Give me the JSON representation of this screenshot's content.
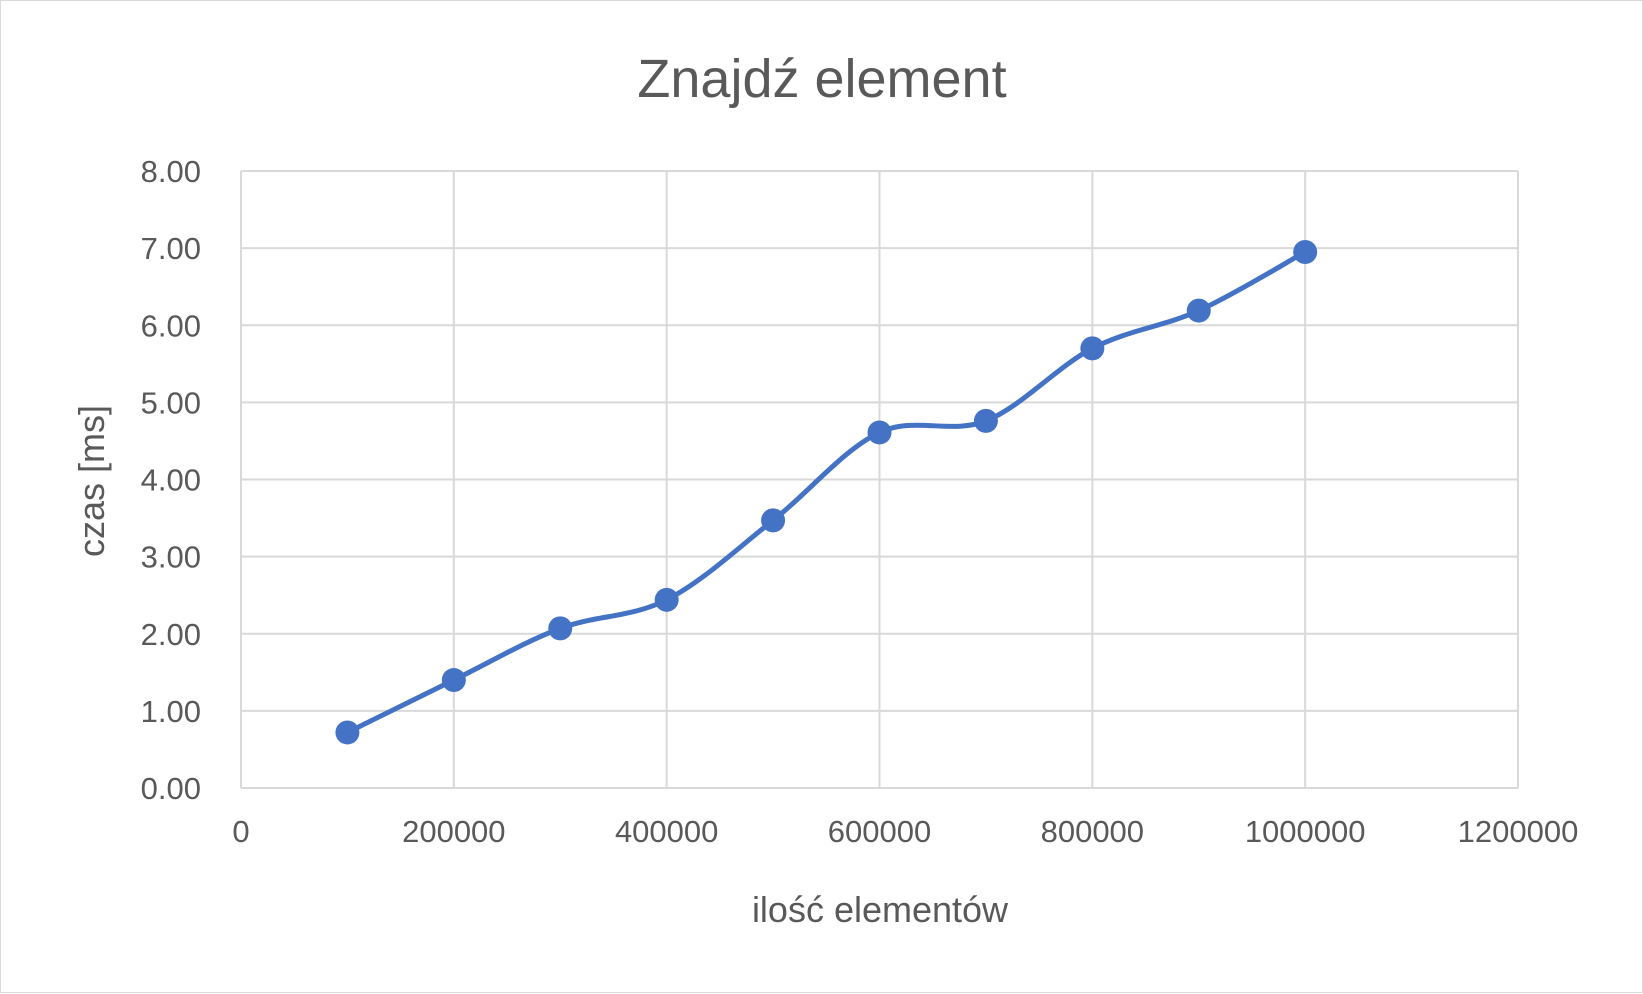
{
  "chart_data": {
    "type": "line",
    "title": "Znajdź element",
    "xlabel": "ilość elementów",
    "ylabel": "czas [ms]",
    "xlim": [
      0,
      1200000
    ],
    "ylim": [
      0,
      8
    ],
    "xticks": [
      0,
      200000,
      400000,
      600000,
      800000,
      1000000,
      1200000
    ],
    "yticks": [
      0,
      1,
      2,
      3,
      4,
      5,
      6,
      7,
      8
    ],
    "ytick_decimals": 2,
    "grid": true,
    "smooth": true,
    "legend": "none",
    "series": [
      {
        "color": "#4472c4",
        "x": [
          100000,
          200000,
          300000,
          400000,
          500000,
          600000,
          700000,
          800000,
          900000,
          1000000
        ],
        "y": [
          0.72,
          1.4,
          2.07,
          2.44,
          3.47,
          4.61,
          4.76,
          5.7,
          6.19,
          6.95
        ]
      }
    ]
  }
}
